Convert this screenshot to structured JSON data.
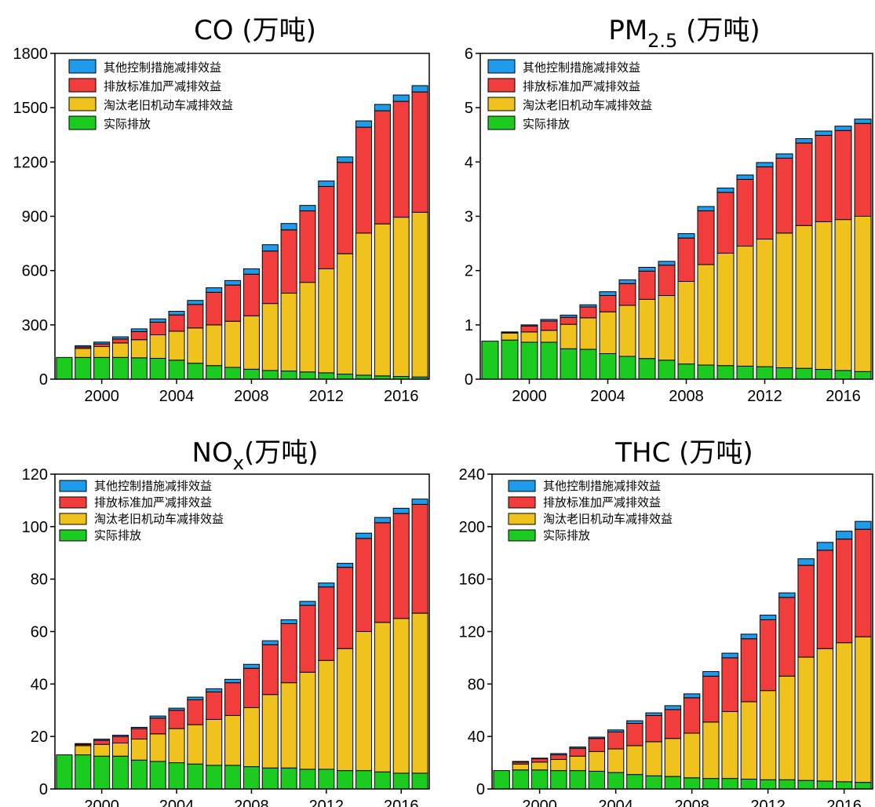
{
  "colors": {
    "other": "#1E9BEB",
    "standard": "#F23D3D",
    "eliminate": "#F0C21E",
    "actual": "#1BCB20"
  },
  "legend": [
    "其他控制措施减排效益",
    "排放标准加严减排效益",
    "淘汰老旧机动车减排效益",
    "实际排放"
  ],
  "chart_data": [
    {
      "type": "bar",
      "stacked": true,
      "title": "CO (万吨)",
      "title_main": "CO",
      "title_sub": "",
      "title_unit": " (万吨)",
      "x": [
        1998,
        1999,
        2000,
        2001,
        2002,
        2003,
        2004,
        2005,
        2006,
        2007,
        2008,
        2009,
        2010,
        2011,
        2012,
        2013,
        2014,
        2015,
        2016,
        2017
      ],
      "xticks": [
        2000,
        2004,
        2008,
        2012,
        2016
      ],
      "ylim": [
        0,
        1800
      ],
      "yticks": [
        0,
        300,
        600,
        900,
        1200,
        1500,
        1800
      ],
      "legend_position": "top-left",
      "series": [
        {
          "name": "实际排放",
          "values": [
            120,
            120,
            120,
            120,
            118,
            115,
            105,
            88,
            75,
            65,
            55,
            48,
            45,
            40,
            35,
            28,
            22,
            18,
            15,
            12
          ]
        },
        {
          "name": "淘汰老旧机动车减排效益",
          "values": [
            0,
            50,
            60,
            80,
            100,
            130,
            160,
            195,
            225,
            255,
            295,
            370,
            430,
            495,
            575,
            665,
            785,
            840,
            880,
            910
          ]
        },
        {
          "name": "排放标准加严减排效益",
          "values": [
            0,
            8,
            15,
            22,
            45,
            70,
            90,
            130,
            180,
            200,
            230,
            290,
            350,
            395,
            455,
            505,
            585,
            625,
            640,
            665
          ]
        },
        {
          "name": "其他控制措施减排效益",
          "values": [
            0,
            7,
            10,
            12,
            15,
            18,
            20,
            22,
            25,
            25,
            30,
            35,
            35,
            30,
            30,
            30,
            35,
            35,
            35,
            35
          ]
        }
      ]
    },
    {
      "type": "bar",
      "stacked": true,
      "title": "PM2.5 (万吨)",
      "title_main": "PM",
      "title_sub": "2.5",
      "title_unit": " (万吨)",
      "x": [
        1998,
        1999,
        2000,
        2001,
        2002,
        2003,
        2004,
        2005,
        2006,
        2007,
        2008,
        2009,
        2010,
        2011,
        2012,
        2013,
        2014,
        2015,
        2016,
        2017
      ],
      "xticks": [
        2000,
        2004,
        2008,
        2012,
        2016
      ],
      "ylim": [
        0,
        6
      ],
      "yticks": [
        0,
        1,
        2,
        3,
        4,
        5,
        6
      ],
      "legend_position": "top-left",
      "series": [
        {
          "name": "实际排放",
          "values": [
            0.7,
            0.72,
            0.68,
            0.68,
            0.56,
            0.55,
            0.47,
            0.42,
            0.38,
            0.35,
            0.28,
            0.26,
            0.25,
            0.24,
            0.23,
            0.21,
            0.2,
            0.18,
            0.16,
            0.14
          ]
        },
        {
          "name": "淘汰老旧机动车减排效益",
          "values": [
            0,
            0.13,
            0.19,
            0.22,
            0.45,
            0.58,
            0.77,
            0.94,
            1.09,
            1.19,
            1.52,
            1.85,
            2.07,
            2.21,
            2.35,
            2.48,
            2.63,
            2.72,
            2.78,
            2.86
          ]
        },
        {
          "name": "排放标准加严减排效益",
          "values": [
            0,
            0.01,
            0.11,
            0.17,
            0.13,
            0.2,
            0.3,
            0.4,
            0.52,
            0.56,
            0.8,
            0.99,
            1.12,
            1.23,
            1.33,
            1.38,
            1.52,
            1.59,
            1.64,
            1.71
          ]
        },
        {
          "name": "其他控制措施减排效益",
          "values": [
            0,
            0.01,
            0.02,
            0.03,
            0.04,
            0.04,
            0.07,
            0.07,
            0.07,
            0.07,
            0.08,
            0.08,
            0.08,
            0.08,
            0.08,
            0.08,
            0.08,
            0.08,
            0.08,
            0.08
          ]
        }
      ]
    },
    {
      "type": "bar",
      "stacked": true,
      "title": "NOx(万吨)",
      "title_main": "NO",
      "title_sub": "x",
      "title_unit": "(万吨)",
      "x": [
        1998,
        1999,
        2000,
        2001,
        2002,
        2003,
        2004,
        2005,
        2006,
        2007,
        2008,
        2009,
        2010,
        2011,
        2012,
        2013,
        2014,
        2015,
        2016,
        2017
      ],
      "xticks": [
        2000,
        2004,
        2008,
        2012,
        2016
      ],
      "ylim": [
        0,
        120
      ],
      "yticks": [
        0,
        20,
        40,
        60,
        80,
        100,
        120
      ],
      "legend_position": "top-left",
      "series": [
        {
          "name": "实际排放",
          "values": [
            13,
            13,
            12.5,
            12.5,
            11,
            10.5,
            10,
            9.5,
            9,
            9,
            8.5,
            8,
            8,
            7.5,
            7.5,
            7,
            7,
            6.5,
            6,
            6
          ]
        },
        {
          "name": "淘汰老旧机动车减排效益",
          "values": [
            0,
            3.5,
            4.5,
            5,
            8,
            10.5,
            13,
            15,
            17.5,
            19,
            22.5,
            28,
            32.5,
            37,
            41.5,
            46.5,
            53,
            57,
            59,
            61
          ]
        },
        {
          "name": "排放标准加严减排效益",
          "values": [
            0,
            0.5,
            1.5,
            2.5,
            4,
            6,
            7,
            9.5,
            10.5,
            12.5,
            15,
            19,
            22.5,
            25.5,
            28,
            31,
            35.5,
            38,
            40,
            41.5
          ]
        },
        {
          "name": "其他控制措施减排效益",
          "values": [
            0,
            0.3,
            0.5,
            0.5,
            0.5,
            0.8,
            0.8,
            1,
            1.2,
            1.3,
            1.5,
            1.5,
            1.5,
            1.5,
            1.5,
            1.5,
            2,
            2,
            2,
            2
          ]
        }
      ]
    },
    {
      "type": "bar",
      "stacked": true,
      "title": "THC (万吨)",
      "title_main": "THC",
      "title_sub": "",
      "title_unit": " (万吨)",
      "x": [
        1998,
        1999,
        2000,
        2001,
        2002,
        2003,
        2004,
        2005,
        2006,
        2007,
        2008,
        2009,
        2010,
        2011,
        2012,
        2013,
        2014,
        2015,
        2016,
        2017
      ],
      "xticks": [
        2000,
        2004,
        2008,
        2012,
        2016
      ],
      "ylim": [
        0,
        240
      ],
      "yticks": [
        0,
        40,
        80,
        120,
        160,
        200,
        240
      ],
      "legend_position": "top-left",
      "series": [
        {
          "name": "实际排放",
          "values": [
            14,
            14.5,
            14.5,
            14,
            14,
            13.5,
            12.5,
            11,
            10,
            9.5,
            8.5,
            8,
            8,
            7.5,
            7,
            7,
            6.5,
            6,
            5.5,
            5
          ]
        },
        {
          "name": "淘汰老旧机动车减排效益",
          "values": [
            0,
            4.5,
            6,
            8.5,
            11,
            15,
            18,
            22,
            26,
            29,
            34,
            43,
            51,
            59,
            68,
            79,
            94,
            101,
            106,
            111
          ]
        },
        {
          "name": "排放标准加严减排效益",
          "values": [
            0,
            1.5,
            2.5,
            3.5,
            6,
            10,
            13,
            17,
            20,
            22,
            27,
            35,
            41,
            48,
            54,
            60,
            70,
            75,
            79,
            82
          ]
        },
        {
          "name": "其他控制措施减排效益",
          "values": [
            0,
            0.5,
            0.5,
            1,
            1,
            1,
            1.5,
            2,
            2,
            3,
            3,
            3.5,
            3.5,
            3.5,
            3.5,
            3.5,
            5,
            6,
            6,
            6
          ]
        }
      ]
    }
  ]
}
